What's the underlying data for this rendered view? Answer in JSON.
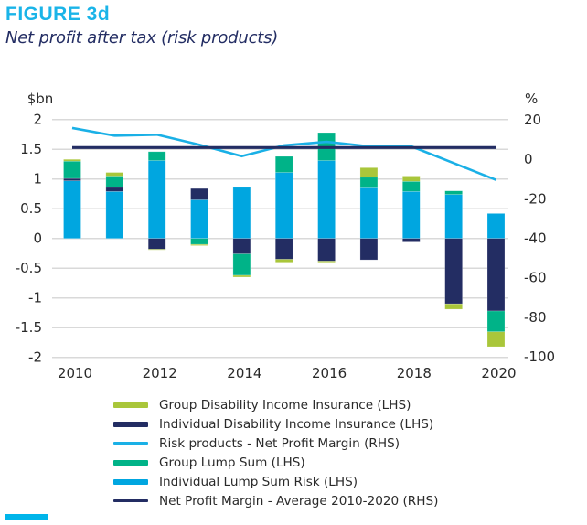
{
  "figure": {
    "label": "FIGURE 3d",
    "title": "Net profit after tax (risk products)"
  },
  "chart_data": {
    "type": "bar",
    "stacked": true,
    "title": "Net profit after tax (risk products)",
    "categories": [
      "2010",
      "2011",
      "2012",
      "2013",
      "2014",
      "2015",
      "2016",
      "2017",
      "2018",
      "2019",
      "2020"
    ],
    "x_tick_labels": [
      "2010",
      "2012",
      "2014",
      "2016",
      "2018",
      "2020"
    ],
    "left_axis": {
      "label": "$bn",
      "range": [
        -2,
        2
      ],
      "ticks": [
        2,
        1.5,
        1,
        0.5,
        0,
        -0.5,
        -1,
        -1.5,
        -2
      ],
      "tick_labels": [
        "2",
        "1.5",
        "1",
        "0.5",
        "0",
        "-0.5",
        "-1",
        "-1.5",
        "-2"
      ]
    },
    "right_axis": {
      "label": "%",
      "range": [
        -100,
        20
      ],
      "ticks": [
        20,
        0,
        -20,
        -40,
        -60,
        -80,
        -100
      ],
      "tick_labels": [
        "20",
        "0",
        "-20",
        "-40",
        "-60",
        "-80",
        "-100"
      ]
    },
    "grid": true,
    "legend_position": "bottom",
    "series": [
      {
        "name": "Individual Lump Sum Risk (LHS)",
        "kind": "bar",
        "axis": "left",
        "color": "#00a6e0",
        "values": [
          0.97,
          0.79,
          1.31,
          0.65,
          0.86,
          1.11,
          1.31,
          0.85,
          0.79,
          0.74,
          0.42
        ]
      },
      {
        "name": "Individual Disability Income Insurance (LHS)",
        "kind": "bar",
        "axis": "left",
        "color": "#232d63",
        "values": [
          0.04,
          0.07,
          -0.18,
          0.19,
          -0.26,
          -0.35,
          -0.38,
          -0.36,
          -0.06,
          -1.1,
          -1.22
        ]
      },
      {
        "name": "Group Lump Sum (LHS)",
        "kind": "bar",
        "axis": "left",
        "color": "#00b388",
        "values": [
          0.29,
          0.19,
          0.15,
          -0.1,
          -0.36,
          0.27,
          0.47,
          0.18,
          0.17,
          0.06,
          -0.35
        ]
      },
      {
        "name": "Group Disability Income Insurance (LHS)",
        "kind": "bar",
        "axis": "left",
        "color": "#a9c63a",
        "values": [
          0.03,
          0.06,
          -0.01,
          -0.02,
          -0.03,
          -0.05,
          -0.02,
          0.16,
          0.09,
          -0.09,
          -0.25
        ]
      },
      {
        "name": "Risk products - Net Profit Margin (RHS)",
        "kind": "line",
        "axis": "right",
        "color": "#1ab0e6",
        "values": [
          15.4,
          11.5,
          12.0,
          6.9,
          1.1,
          6.6,
          8.4,
          6.1,
          6.1,
          -2.4,
          -10.9
        ]
      },
      {
        "name": "Net Profit Margin - Average 2010-2020 (RHS)",
        "kind": "line",
        "axis": "right",
        "color": "#232d63",
        "values": [
          5.5,
          5.5,
          5.5,
          5.5,
          5.5,
          5.5,
          5.5,
          5.5,
          5.5,
          5.5,
          5.5
        ]
      }
    ],
    "legend": [
      {
        "label": "Group Disability Income Insurance (LHS)",
        "color": "#a9c63a",
        "kind": "bar"
      },
      {
        "label": "Individual Disability Income Insurance (LHS)",
        "color": "#232d63",
        "kind": "bar"
      },
      {
        "label": "Risk products - Net Profit Margin (RHS)",
        "color": "#1ab0e6",
        "kind": "line"
      },
      {
        "label": "Group Lump Sum (LHS)",
        "color": "#00b388",
        "kind": "bar"
      },
      {
        "label": "Individual Lump Sum Risk (LHS)",
        "color": "#00a6e0",
        "kind": "bar"
      },
      {
        "label": "Net Profit Margin - Average 2010-2020 (RHS)",
        "color": "#232d63",
        "kind": "line"
      }
    ]
  }
}
